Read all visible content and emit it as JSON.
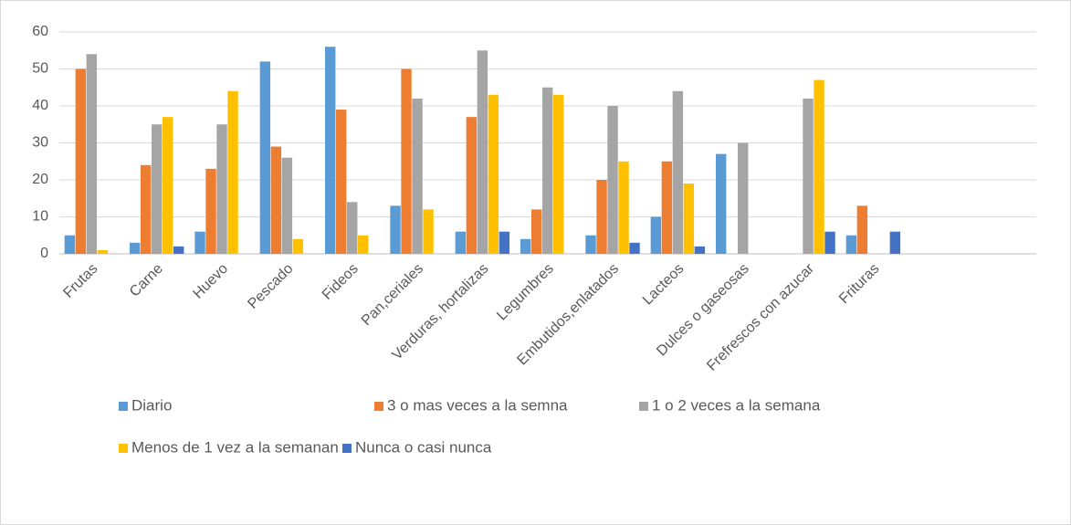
{
  "chart_data": {
    "type": "bar",
    "categories": [
      "Frutas",
      "Carne",
      "Huevo",
      "Pescado",
      "Fideos",
      "Pan,ceriales",
      "Verduras, hortalizas",
      "Legumbres",
      "Embutidos,enlatados",
      "Lacteos",
      "Dulces o gaseosas",
      "Frefrescos con azucar",
      "Frituras",
      null,
      null
    ],
    "series": [
      {
        "name": "Diario",
        "color": "#5b9bd5",
        "values": [
          5,
          3,
          6,
          52,
          56,
          13,
          6,
          4,
          5,
          10,
          27,
          0,
          5,
          null,
          null
        ]
      },
      {
        "name": "3 o mas veces a la semna",
        "color": "#ed7d31",
        "values": [
          50,
          24,
          23,
          29,
          39,
          50,
          37,
          12,
          20,
          25,
          0,
          0,
          13,
          null,
          null
        ]
      },
      {
        "name": "1 o 2 veces a la semana",
        "color": "#a5a5a5",
        "values": [
          54,
          35,
          35,
          26,
          14,
          42,
          55,
          45,
          40,
          44,
          30,
          42,
          0,
          null,
          null
        ]
      },
      {
        "name": "Menos de 1 vez a la semanan",
        "color": "#ffc000",
        "values": [
          1,
          37,
          44,
          4,
          5,
          12,
          43,
          43,
          25,
          19,
          0,
          47,
          0,
          null,
          null
        ]
      },
      {
        "name": "Nunca o casi nunca",
        "color": "#4472c4",
        "values": [
          0,
          2,
          0,
          0,
          0,
          0,
          6,
          0,
          3,
          2,
          0,
          6,
          6,
          null,
          null
        ]
      }
    ],
    "ylim": [
      0,
      60
    ],
    "yticks": [
      0,
      10,
      20,
      30,
      40,
      50,
      60
    ],
    "grid": true,
    "legend": "bottom"
  }
}
